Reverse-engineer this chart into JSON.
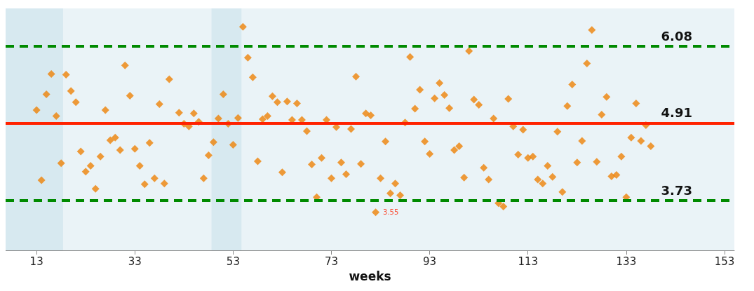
{
  "chart_data": {
    "type": "scatter",
    "xlabel": "weeks",
    "marker": "diamond",
    "tick_labels": "x",
    "grid": false,
    "xlim": [
      6.7,
      155
    ],
    "xticks": [
      13,
      33,
      53,
      73,
      93,
      113,
      133,
      153
    ],
    "ylim": [
      2.97,
      6.66
    ],
    "series": [
      {
        "color": "#ee8208",
        "x": [
          13,
          14,
          15,
          16,
          17,
          18,
          19,
          20,
          21,
          22,
          23,
          24,
          25,
          26,
          27,
          28,
          29,
          30,
          31,
          32,
          33,
          34,
          35,
          36,
          37,
          38,
          39,
          40,
          42,
          43,
          44,
          45,
          46,
          47,
          48,
          49,
          50,
          51,
          52,
          53,
          54,
          55,
          56,
          57,
          58,
          59,
          60,
          61,
          62,
          63,
          64,
          65,
          66,
          67,
          68,
          69,
          70,
          71,
          72,
          73,
          74,
          75,
          76,
          77,
          78,
          79,
          80,
          81,
          82,
          83,
          84,
          85,
          86,
          87,
          88,
          89,
          90,
          91,
          92,
          93,
          94,
          95,
          96,
          97,
          98,
          99,
          100,
          101,
          102,
          103,
          104,
          105,
          106,
          107,
          108,
          109,
          110,
          111,
          112,
          113,
          114,
          115,
          116,
          117,
          118,
          119,
          120,
          121,
          122,
          123,
          124,
          125,
          126,
          127,
          128,
          129,
          130,
          131,
          132,
          133,
          134,
          135,
          136,
          137,
          138
        ],
        "values": [
          5.11,
          4.04,
          5.35,
          5.66,
          5.02,
          4.3,
          5.65,
          5.4,
          5.23,
          4.48,
          4.17,
          4.26,
          3.91,
          4.4,
          5.11,
          4.65,
          4.69,
          4.5,
          5.79,
          5.33,
          4.52,
          4.26,
          3.98,
          4.61,
          4.07,
          5.2,
          3.99,
          5.58,
          5.07,
          4.9,
          4.86,
          5.06,
          4.93,
          4.07,
          4.42,
          4.62,
          4.98,
          5.35,
          4.9,
          4.58,
          4.99,
          6.38,
          5.91,
          5.61,
          4.33,
          4.97,
          5.02,
          5.32,
          5.23,
          4.16,
          5.24,
          4.96,
          5.21,
          4.96,
          4.79,
          4.28,
          3.78,
          4.38,
          4.96,
          4.07,
          4.85,
          4.31,
          4.13,
          4.82,
          5.62,
          4.29,
          5.06,
          5.03,
          3.55,
          4.07,
          4.63,
          3.84,
          3.99,
          3.81,
          4.92,
          5.92,
          5.13,
          5.42,
          4.63,
          4.44,
          5.29,
          5.52,
          5.34,
          5.14,
          4.5,
          4.56,
          4.08,
          6.01,
          5.27,
          5.19,
          4.23,
          4.05,
          4.98,
          3.69,
          3.64,
          5.28,
          4.86,
          4.43,
          4.81,
          4.38,
          4.4,
          4.05,
          3.99,
          4.26,
          4.09,
          4.78,
          3.86,
          5.17,
          5.5,
          4.31,
          4.64,
          5.82,
          6.33,
          4.32,
          5.04,
          5.31,
          4.1,
          4.12,
          4.4,
          3.78,
          4.69,
          5.21,
          4.64,
          4.88,
          4.56
        ],
        "value_labels": [
          null,
          null,
          null,
          null,
          null,
          null,
          null,
          null,
          null,
          null,
          null,
          null,
          null,
          null,
          null,
          null,
          null,
          null,
          null,
          null,
          null,
          null,
          null,
          null,
          null,
          null,
          null,
          null,
          null,
          null,
          null,
          null,
          null,
          null,
          null,
          null,
          null,
          null,
          null,
          null,
          null,
          null,
          null,
          null,
          null,
          null,
          null,
          null,
          null,
          null,
          null,
          null,
          null,
          null,
          null,
          null,
          null,
          null,
          null,
          null,
          null,
          null,
          null,
          null,
          null,
          null,
          null,
          null,
          "3.55",
          null,
          null,
          null,
          null,
          null,
          null,
          null,
          null,
          null,
          null,
          null,
          null,
          null,
          null,
          null,
          null,
          null,
          null,
          null,
          null,
          null,
          null,
          null,
          null,
          null,
          null,
          null,
          null,
          null,
          null,
          null,
          null,
          null,
          null,
          null,
          null,
          null,
          null,
          null,
          null,
          null,
          null,
          null,
          null,
          null,
          null,
          null,
          null,
          null,
          null,
          null,
          null,
          null,
          null,
          null,
          null
        ]
      }
    ],
    "ref_lines": [
      {
        "axis": "y",
        "value": 6.08,
        "label": "6.08",
        "color": "#008a00",
        "line_style": "dashed"
      },
      {
        "axis": "y",
        "value": 4.91,
        "label": "4.91",
        "color": "#ff2200",
        "line_style": "solid"
      },
      {
        "axis": "y",
        "value": 3.73,
        "label": "3.73",
        "color": "#008a00",
        "line_style": "dashed"
      }
    ],
    "bands": [
      {
        "axis": "x",
        "from": 6.7,
        "to": 18.4,
        "color": "#d7e9f0"
      },
      {
        "axis": "x",
        "from": 48.6,
        "to": 54.7,
        "color": "#d7e9f0"
      }
    ]
  }
}
